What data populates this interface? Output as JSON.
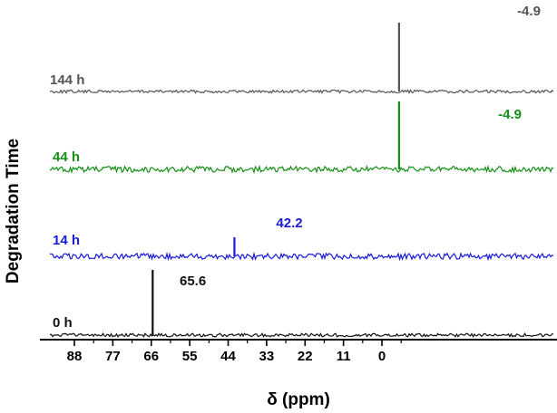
{
  "chart_data": {
    "type": "line",
    "title": "",
    "xlabel": "δ (ppm)",
    "ylabel": "Degradation Time",
    "x_reversed": true,
    "xlim": [
      92,
      -9
    ],
    "x_ticks": [
      "88",
      "77",
      "66",
      "55",
      "44",
      "33",
      "22",
      "11",
      "0"
    ],
    "y_ticks": false,
    "grid": false,
    "series": [
      {
        "name": "144 h",
        "color": "#555555",
        "peak": {
          "x": -4.9,
          "label": "-4.9"
        }
      },
      {
        "name": "44 h",
        "color": "#169016",
        "peak": {
          "x": -4.9,
          "label": "-4.9"
        }
      },
      {
        "name": "14 h",
        "color": "#1a1ad8",
        "peak": {
          "x": 42.2,
          "label": "42.2"
        }
      },
      {
        "name": "0 h",
        "color": "#111111",
        "peak": {
          "x": 65.6,
          "label": "65.6"
        }
      }
    ]
  }
}
